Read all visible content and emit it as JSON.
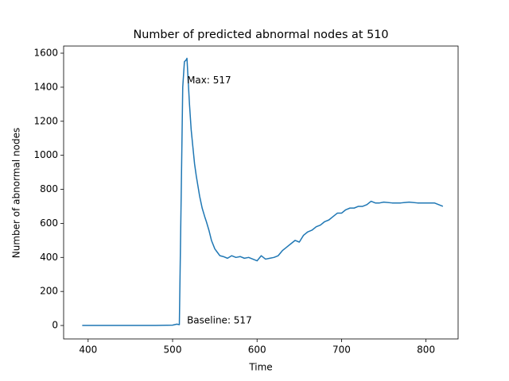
{
  "chart_data": {
    "type": "line",
    "title": "Number of predicted abnormal nodes at 510",
    "xlabel": "Time",
    "ylabel": "Number of abnormal nodes",
    "x": [
      393,
      400,
      420,
      440,
      460,
      480,
      500,
      505,
      508,
      510,
      512,
      514,
      516,
      517,
      518,
      520,
      522,
      524,
      526,
      528,
      530,
      532,
      535,
      538,
      540,
      543,
      546,
      550,
      553,
      556,
      560,
      565,
      570,
      575,
      580,
      585,
      590,
      595,
      600,
      605,
      610,
      615,
      620,
      625,
      630,
      635,
      640,
      645,
      650,
      655,
      660,
      665,
      670,
      675,
      680,
      685,
      690,
      695,
      700,
      705,
      710,
      715,
      720,
      725,
      730,
      735,
      740,
      745,
      750,
      760,
      770,
      780,
      790,
      800,
      810,
      815,
      820
    ],
    "series": [
      {
        "color": "#1f77b4",
        "values": [
          0,
          0,
          0,
          0,
          0,
          0,
          2,
          8,
          5,
          700,
          1400,
          1550,
          1560,
          1570,
          1480,
          1300,
          1150,
          1050,
          950,
          880,
          820,
          760,
          690,
          640,
          610,
          560,
          500,
          450,
          430,
          410,
          405,
          395,
          410,
          400,
          405,
          395,
          400,
          390,
          380,
          410,
          390,
          395,
          400,
          410,
          440,
          460,
          480,
          500,
          490,
          530,
          550,
          560,
          580,
          590,
          610,
          620,
          640,
          660,
          660,
          680,
          690,
          690,
          700,
          700,
          710,
          730,
          720,
          720,
          725,
          720,
          720,
          725,
          720,
          720,
          720,
          710,
          700
        ]
      }
    ],
    "annotations": [
      {
        "text": "Max: 517",
        "x": 517,
        "y": 1420
      },
      {
        "text": "Baseline: 517",
        "x": 517,
        "y": 10
      }
    ],
    "xlim": [
      371,
      838
    ],
    "ylim": [
      -79,
      1642
    ],
    "xticks": [
      400,
      500,
      600,
      700,
      800
    ],
    "yticks": [
      0,
      200,
      400,
      600,
      800,
      1000,
      1200,
      1400,
      1600
    ]
  }
}
